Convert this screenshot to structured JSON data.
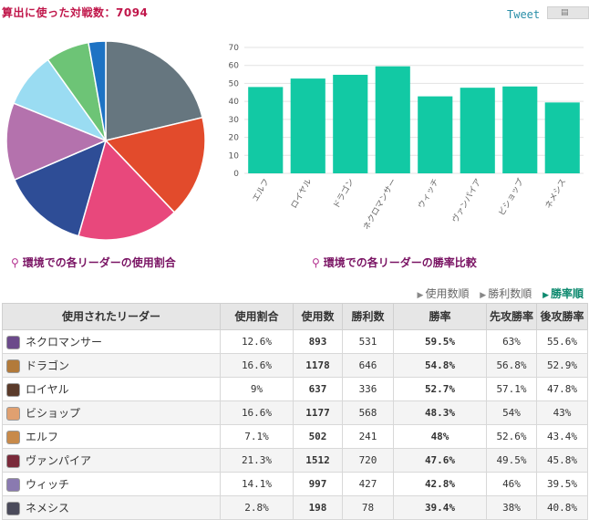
{
  "header": {
    "title": "算出に使った対戦数：7094",
    "tweet_label": "Tweet"
  },
  "captions": {
    "pie": "環境での各リーダーの使用割合",
    "bar": "環境での各リーダーの勝率比較"
  },
  "sort": {
    "options": [
      "使用数順",
      "勝利数順",
      "勝率順"
    ],
    "active": "勝率順"
  },
  "colors": {
    "bar": "#12c9a4",
    "rate_highlight": "#d35400"
  },
  "table": {
    "headers": [
      "使用されたリーダー",
      "使用割合",
      "使用数",
      "勝利数",
      "勝率",
      "先攻勝率",
      "後攻勝率"
    ],
    "rows": [
      {
        "leader": "ネクロマンサー",
        "share": "12.6%",
        "uses": "893",
        "wins": "531",
        "rate": "59.5%",
        "first": "63%",
        "second": "55.6%",
        "icon_color": "#6b4a8a"
      },
      {
        "leader": "ドラゴン",
        "share": "16.6%",
        "uses": "1178",
        "wins": "646",
        "rate": "54.8%",
        "first": "56.8%",
        "second": "52.9%",
        "icon_color": "#b27a3a"
      },
      {
        "leader": "ロイヤル",
        "share": "9%",
        "uses": "637",
        "wins": "336",
        "rate": "52.7%",
        "first": "57.1%",
        "second": "47.8%",
        "icon_color": "#5a3a2a"
      },
      {
        "leader": "ビショップ",
        "share": "16.6%",
        "uses": "1177",
        "wins": "568",
        "rate": "48.3%",
        "first": "54%",
        "second": "43%",
        "icon_color": "#e0a070"
      },
      {
        "leader": "エルフ",
        "share": "7.1%",
        "uses": "502",
        "wins": "241",
        "rate": "48%",
        "first": "52.6%",
        "second": "43.4%",
        "icon_color": "#c88a4a"
      },
      {
        "leader": "ヴァンパイア",
        "share": "21.3%",
        "uses": "1512",
        "wins": "720",
        "rate": "47.6%",
        "first": "49.5%",
        "second": "45.8%",
        "icon_color": "#7a2a3a"
      },
      {
        "leader": "ウィッチ",
        "share": "14.1%",
        "uses": "997",
        "wins": "427",
        "rate": "42.8%",
        "first": "46%",
        "second": "39.5%",
        "icon_color": "#8a7ab0"
      },
      {
        "leader": "ネメシス",
        "share": "2.8%",
        "uses": "198",
        "wins": "78",
        "rate": "39.4%",
        "first": "38%",
        "second": "40.8%",
        "icon_color": "#4a4a5a"
      }
    ]
  },
  "chart_data": [
    {
      "type": "pie",
      "title": "環境での各リーダーの使用割合",
      "slices": [
        {
          "label": "ヴァンパイア",
          "value": 21.3,
          "color": "#66767f"
        },
        {
          "label": "ドラゴン",
          "value": 16.6,
          "color": "#e24b2c"
        },
        {
          "label": "ビショップ",
          "value": 16.6,
          "color": "#e8487c"
        },
        {
          "label": "ウィッチ",
          "value": 14.1,
          "color": "#2e4d96"
        },
        {
          "label": "ネクロマンサー",
          "value": 12.6,
          "color": "#b472ad"
        },
        {
          "label": "ロイヤル",
          "value": 9.0,
          "color": "#9adcf2"
        },
        {
          "label": "エルフ",
          "value": 7.1,
          "color": "#6dc476"
        },
        {
          "label": "ネメシス",
          "value": 2.8,
          "color": "#1e73c4"
        }
      ]
    },
    {
      "type": "bar",
      "title": "環境での各リーダーの勝率比較",
      "categories": [
        "エルフ",
        "ロイヤル",
        "ドラゴン",
        "ネクロマンサー",
        "ウィッチ",
        "ヴァンパイア",
        "ビショップ",
        "ネメシス"
      ],
      "values": [
        48.0,
        52.7,
        54.8,
        59.5,
        42.8,
        47.6,
        48.3,
        39.4
      ],
      "ylim": [
        0,
        70
      ],
      "yticks": [
        0,
        10,
        20,
        30,
        40,
        50,
        60,
        70
      ],
      "grid": true
    }
  ]
}
